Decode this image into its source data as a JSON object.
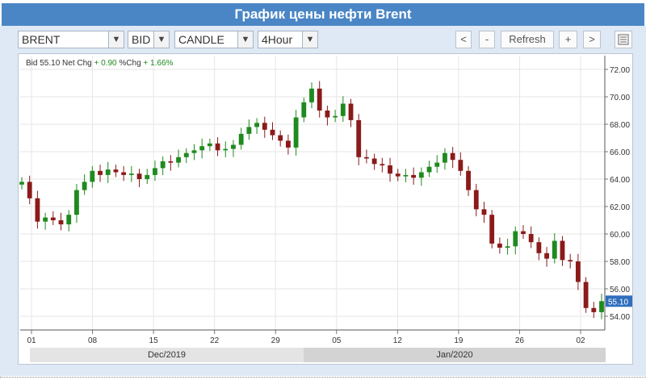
{
  "window": {
    "title": "График цены нефти Brent"
  },
  "toolbar": {
    "instrument": "BRENT",
    "side": "BID",
    "chart_type": "CANDLE",
    "interval": "4Hour",
    "dropdown_arrow": "▼",
    "prev_label": "<",
    "zoom_out_label": "-",
    "refresh_label": "Refresh",
    "zoom_in_label": "+",
    "next_label": ">",
    "menu_icon": "list-icon"
  },
  "legend": {
    "bid_label": "Bid",
    "bid_value": "55.10",
    "net_chg_label": "Net Chg",
    "net_chg_value": "+ 0.90",
    "pct_chg_label": "%Chg",
    "pct_chg_value": "+ 1.66%"
  },
  "colors": {
    "up": "#1f8a1f",
    "down": "#8b1a1a",
    "title_bg": "#4a86c5",
    "last_badge": "#2f6fbd"
  },
  "chart_data": {
    "type": "candlestick",
    "ylim": [
      53,
      73
    ],
    "yticks": [
      "54.00",
      "56.00",
      "58.00",
      "60.00",
      "62.00",
      "64.00",
      "66.00",
      "68.00",
      "70.00",
      "72.00"
    ],
    "xticks": [
      "01",
      "08",
      "15",
      "22",
      "29",
      "05",
      "12",
      "19",
      "26",
      "02"
    ],
    "months": [
      "Dec/2019",
      "Jan/2020"
    ],
    "last_price": "55.10",
    "close_series": [
      63.8,
      62.6,
      60.9,
      61.2,
      61.0,
      60.7,
      61.4,
      63.2,
      63.8,
      64.6,
      64.3,
      64.7,
      64.5,
      64.3,
      64.4,
      64.0,
      64.3,
      64.8,
      65.3,
      65.2,
      65.6,
      65.9,
      66.1,
      66.4,
      66.6,
      66.1,
      66.2,
      66.5,
      67.3,
      67.8,
      68.1,
      67.6,
      67.2,
      66.8,
      66.3,
      68.5,
      69.6,
      70.6,
      69.0,
      68.5,
      68.6,
      69.5,
      68.3,
      65.6,
      65.5,
      65.1,
      65.0,
      64.4,
      64.2,
      64.3,
      64.1,
      64.5,
      64.9,
      65.2,
      65.9,
      65.4,
      64.6,
      63.2,
      61.8,
      61.4,
      59.3,
      59.0,
      59.1,
      60.2,
      60.0,
      59.4,
      58.6,
      58.2,
      59.5,
      58.1,
      58.0,
      56.5,
      54.6,
      54.3,
      55.1
    ]
  }
}
